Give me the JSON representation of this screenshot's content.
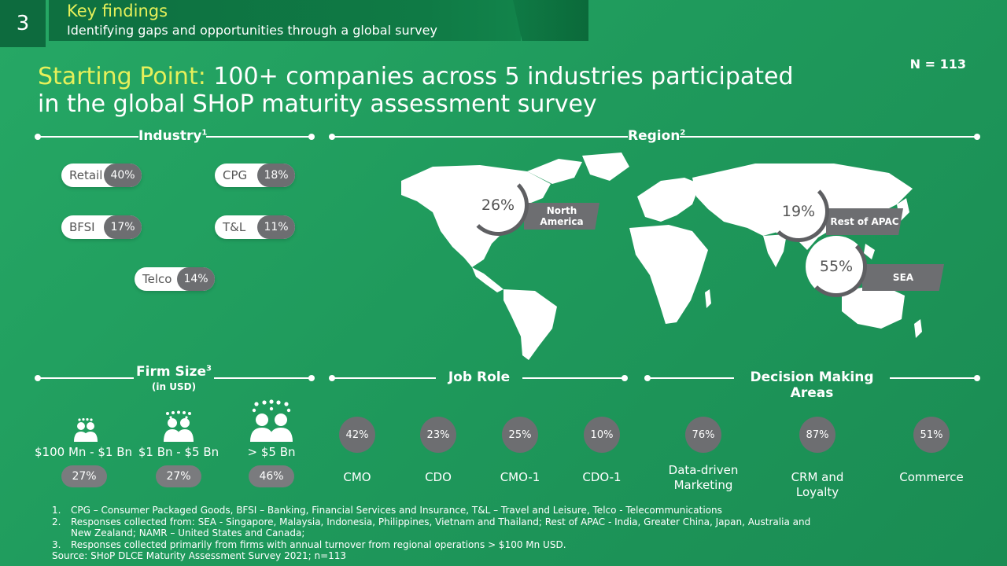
{
  "header": {
    "slide_number": "3",
    "title": "Key findings",
    "subtitle": "Identifying gaps and opportunities through a global survey"
  },
  "sample_size": "N = 113",
  "main_title": {
    "accent": "Starting Point:",
    "text": " 100+ companies across 5 industries participated in the global SHoP maturity assessment survey"
  },
  "industry": {
    "label": "Industry",
    "footnote_marker": "1",
    "items": [
      {
        "label": "Retail",
        "value": "40%"
      },
      {
        "label": "CPG",
        "value": "18%"
      },
      {
        "label": "BFSI",
        "value": "17%"
      },
      {
        "label": "T&L",
        "value": "11%"
      },
      {
        "label": "Telco",
        "value": "14%"
      }
    ]
  },
  "region": {
    "label": "Region",
    "footnote_marker": "2",
    "items": [
      {
        "value": "26%",
        "name": "North America"
      },
      {
        "value": "19%",
        "name": "Rest of APAC"
      },
      {
        "value": "55%",
        "name": "SEA"
      }
    ]
  },
  "firm_size": {
    "label": "Firm Size",
    "footnote_marker": "3",
    "unit": "(in USD)",
    "items": [
      {
        "label": "$100 Mn - $1 Bn",
        "value": "27%"
      },
      {
        "label": "$1 Bn - $5 Bn",
        "value": "27%"
      },
      {
        "label": "> $5 Bn",
        "value": "46%"
      }
    ]
  },
  "job_role": {
    "label": "Job Role",
    "items": [
      {
        "label": "CMO",
        "value": "42%"
      },
      {
        "label": "CDO",
        "value": "23%"
      },
      {
        "label": "CMO-1",
        "value": "25%"
      },
      {
        "label": "CDO-1",
        "value": "10%"
      }
    ]
  },
  "decision_areas": {
    "label": "Decision Making Areas",
    "items": [
      {
        "label": "Data-driven Marketing",
        "value": "76%"
      },
      {
        "label": "CRM and Loyalty",
        "value": "87%"
      },
      {
        "label": "Commerce",
        "value": "51%"
      }
    ]
  },
  "footnotes": [
    {
      "num": "1.",
      "text": "CPG – Consumer Packaged Goods, BFSI – Banking, Financial Services and Insurance, T&L – Travel and Leisure, Telco - Telecommunications"
    },
    {
      "num": "2.",
      "text": "Responses collected from: SEA - Singapore, Malaysia, Indonesia, Philippines, Vietnam and Thailand; Rest of APAC - India, Greater China, Japan, Australia and New Zealand; NAMR – United States and Canada;"
    },
    {
      "num": "3.",
      "text": "Responses collected primarily from firms with annual turnover from regional operations > $100 Mn USD."
    }
  ],
  "source": "Source: SHoP DLCE Maturity Assessment Survey 2021; n=113",
  "colors": {
    "background": "#22a060",
    "accent_yellow": "#e6f05a",
    "header_dark_green": "#0d6b3e",
    "gray": "#6d6e71"
  }
}
